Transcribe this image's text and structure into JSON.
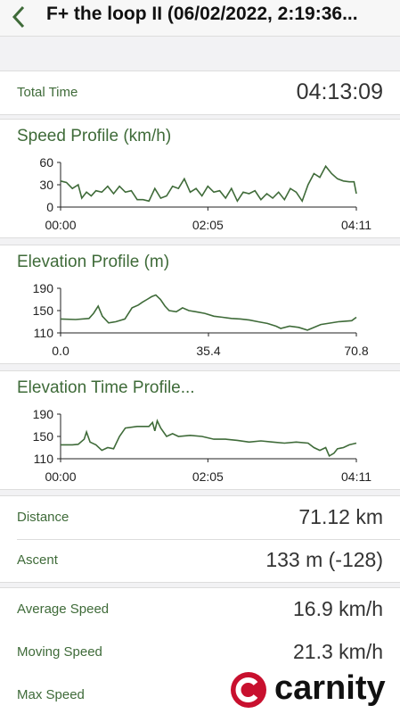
{
  "header": {
    "title": "F+ the loop II (06/02/2022, 2:19:36..."
  },
  "total_time": {
    "label": "Total Time",
    "value": "04:13:09"
  },
  "charts": [
    {
      "type": "line",
      "title": "Speed Profile (km/h)",
      "color": "#3f6b39",
      "xlim": [
        0,
        251
      ],
      "xticks": [
        {
          "value": 0,
          "label": "00:00"
        },
        {
          "value": 125,
          "label": "02:05"
        },
        {
          "value": 251,
          "label": "04:11"
        }
      ],
      "ylim": [
        0,
        60
      ],
      "yticks": [
        0,
        30,
        60
      ],
      "x": [
        0,
        5,
        10,
        15,
        18,
        22,
        26,
        30,
        35,
        40,
        45,
        50,
        55,
        60,
        65,
        70,
        75,
        80,
        85,
        90,
        95,
        100,
        105,
        110,
        115,
        120,
        125,
        130,
        135,
        140,
        145,
        150,
        155,
        160,
        165,
        170,
        175,
        180,
        185,
        190,
        195,
        200,
        205,
        210,
        215,
        220,
        225,
        230,
        235,
        240,
        245,
        249,
        251
      ],
      "values": [
        35,
        33,
        25,
        30,
        12,
        20,
        15,
        22,
        20,
        28,
        18,
        28,
        20,
        22,
        10,
        10,
        8,
        25,
        12,
        15,
        28,
        25,
        38,
        20,
        25,
        15,
        28,
        20,
        22,
        12,
        25,
        8,
        20,
        18,
        22,
        10,
        18,
        12,
        20,
        10,
        25,
        20,
        8,
        30,
        45,
        40,
        55,
        45,
        38,
        35,
        34,
        34,
        18
      ]
    },
    {
      "type": "line",
      "title": "Elevation Profile (m)",
      "color": "#3f6b39",
      "xlim": [
        0,
        70.8
      ],
      "xticks": [
        {
          "value": 0,
          "label": "0.0"
        },
        35.4,
        70.8
      ],
      "ylim": [
        110,
        190
      ],
      "yticks": [
        110,
        150,
        190
      ],
      "x": [
        0,
        3.6,
        6.8,
        7.9,
        9.0,
        10.0,
        11.5,
        13.2,
        15.4,
        17.1,
        18.6,
        19.6,
        20.7,
        21.8,
        22.8,
        23.9,
        25.0,
        26.0,
        27.7,
        29.2,
        30.7,
        32.4,
        34.5,
        36.7,
        38.8,
        40.9,
        43.1,
        45.2,
        47.3,
        49.5,
        51.6,
        52.7,
        54.8,
        57.0,
        59.1,
        62.3,
        66.5,
        69.7,
        70.8
      ],
      "values": [
        135,
        134,
        136,
        145,
        158,
        140,
        128,
        130,
        135,
        155,
        160,
        165,
        170,
        175,
        178,
        170,
        158,
        150,
        148,
        155,
        150,
        148,
        145,
        140,
        138,
        136,
        135,
        133,
        130,
        127,
        122,
        118,
        122,
        120,
        115,
        125,
        130,
        132,
        138
      ]
    },
    {
      "type": "line",
      "title": "Elevation Time Profile...",
      "color": "#3f6b39",
      "xlim": [
        0,
        251
      ],
      "xticks": [
        {
          "value": 0,
          "label": "00:00"
        },
        {
          "value": 125,
          "label": "02:05"
        },
        {
          "value": 251,
          "label": "04:11"
        }
      ],
      "ylim": [
        110,
        190
      ],
      "yticks": [
        110,
        150,
        190
      ],
      "x": [
        0,
        10,
        15,
        20,
        22,
        25,
        30,
        35,
        40,
        45,
        50,
        55,
        65,
        75,
        78,
        80,
        82,
        85,
        90,
        95,
        100,
        110,
        120,
        130,
        140,
        150,
        160,
        170,
        180,
        190,
        200,
        210,
        215,
        220,
        225,
        228,
        232,
        235,
        240,
        245,
        251
      ],
      "values": [
        135,
        135,
        136,
        145,
        158,
        140,
        135,
        125,
        130,
        128,
        150,
        165,
        168,
        168,
        175,
        160,
        178,
        165,
        150,
        155,
        150,
        152,
        150,
        145,
        145,
        143,
        140,
        142,
        140,
        138,
        140,
        138,
        130,
        125,
        130,
        115,
        120,
        128,
        130,
        135,
        138
      ]
    }
  ],
  "stats": [
    [
      {
        "label": "Distance",
        "value": "71.12 km"
      },
      {
        "label": "Ascent",
        "value": "133 m (-128)"
      }
    ],
    [
      {
        "label": "Average Speed",
        "value": "16.9 km/h"
      },
      {
        "label": "Moving Speed",
        "value": "21.3 km/h"
      },
      {
        "label": "Max Speed",
        "value": ""
      }
    ]
  ],
  "watermark": "carnity"
}
